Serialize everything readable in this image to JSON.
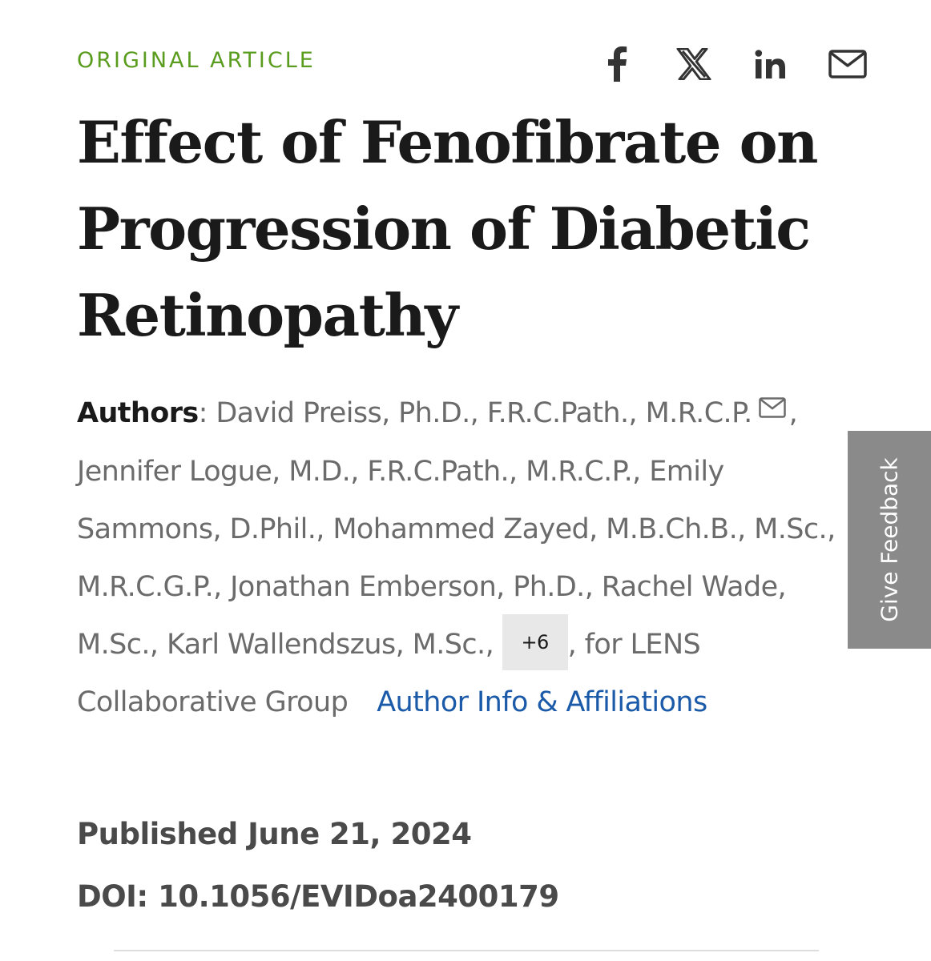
{
  "article": {
    "type_label": "ORIGINAL ARTICLE",
    "title": "Effect of Fenofibrate on Progression of Diabetic Retinopathy",
    "authors_label": "Authors",
    "authors_sep": ": ",
    "authors_part1": "David Preiss, Ph.D., F.R.C.Path., M.R.C.P.",
    "authors_part2": ", Jennifer Logue, M.D., F.R.C.Path., M.R.C.P., Emily Sammons, D.Phil., Mohammed Zayed, M.B.Ch.B., M.Sc., M.R.C.G.P., Jonathan Emberson, Ph.D., Rachel Wade, M.Sc., Karl Wallendszus, M.Sc., ",
    "more_authors": "+6",
    "authors_part3": ", for LENS Collaborative Group",
    "affiliations_link": "Author Info & Affiliations",
    "published": "Published June 21, 2024",
    "doi": "DOI: 10.1056/EVIDoa2400179"
  },
  "share": {
    "icons": [
      "facebook-icon",
      "x-icon",
      "linkedin-icon",
      "mail-icon"
    ]
  },
  "feedback": {
    "label": "Give Feedback",
    "color": "#8a8a8a"
  },
  "colors": {
    "accent_green": "#5a9c1e",
    "link_blue": "#1b5aa8",
    "author_gray": "#6b6b6b"
  }
}
